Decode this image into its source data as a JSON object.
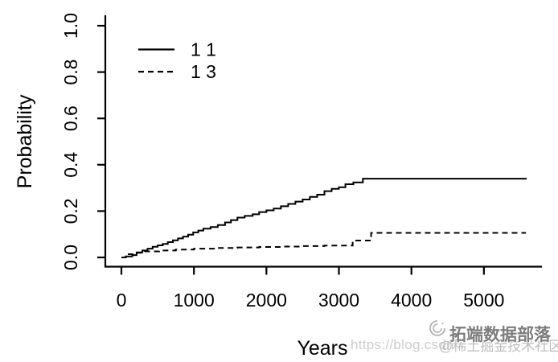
{
  "colors": {
    "line": "#000000",
    "background": "#ffffff",
    "url_watermark": "#cccccc",
    "juejin_watermark": "#bcbcbc",
    "tecdat_watermark": "#7d7d7d"
  },
  "watermarks": {
    "url": "https://blog.csdn",
    "juejin": "@稀土掘金技术社区",
    "tecdat": "拓端数据部落",
    "tecdat_logo_icon": "swirl-icon"
  },
  "chart_data": {
    "type": "line",
    "subtype": "step",
    "title": "",
    "xlabel": "Years",
    "ylabel": "Probability",
    "grid": false,
    "xlim": [
      -220,
      5790
    ],
    "ylim": [
      -0.04,
      1.04
    ],
    "x_ticks": [
      0,
      1000,
      2000,
      3000,
      4000,
      5000
    ],
    "y_ticks": [
      0.0,
      0.2,
      0.4,
      0.6,
      0.8,
      1.0
    ],
    "y_tick_labels": [
      "0.0",
      "0.2",
      "0.4",
      "0.6",
      "0.8",
      "1.0"
    ],
    "legend": {
      "position": "top-left",
      "box": false,
      "entries": [
        {
          "label": "1 1",
          "linestyle": "solid"
        },
        {
          "label": "1 3",
          "linestyle": "dashed"
        }
      ]
    },
    "series": [
      {
        "name": "1 1",
        "linestyle": "solid",
        "color": "#000000",
        "end_x": 5590,
        "step_points": [
          [
            0,
            0
          ],
          [
            60,
            0.004
          ],
          [
            150,
            0.01
          ],
          [
            210,
            0.022
          ],
          [
            290,
            0.03
          ],
          [
            360,
            0.038
          ],
          [
            430,
            0.046
          ],
          [
            500,
            0.052
          ],
          [
            570,
            0.058
          ],
          [
            640,
            0.066
          ],
          [
            710,
            0.074
          ],
          [
            780,
            0.082
          ],
          [
            850,
            0.09
          ],
          [
            920,
            0.098
          ],
          [
            990,
            0.108
          ],
          [
            1060,
            0.116
          ],
          [
            1130,
            0.124
          ],
          [
            1230,
            0.131
          ],
          [
            1330,
            0.14
          ],
          [
            1430,
            0.151
          ],
          [
            1510,
            0.161
          ],
          [
            1600,
            0.172
          ],
          [
            1700,
            0.179
          ],
          [
            1810,
            0.186
          ],
          [
            1900,
            0.196
          ],
          [
            2000,
            0.203
          ],
          [
            2100,
            0.211
          ],
          [
            2200,
            0.221
          ],
          [
            2300,
            0.231
          ],
          [
            2400,
            0.241
          ],
          [
            2500,
            0.25
          ],
          [
            2600,
            0.261
          ],
          [
            2700,
            0.271
          ],
          [
            2800,
            0.286
          ],
          [
            2900,
            0.296
          ],
          [
            3000,
            0.303
          ],
          [
            3090,
            0.316
          ],
          [
            3200,
            0.324
          ],
          [
            3330,
            0.34
          ]
        ]
      },
      {
        "name": "1 3",
        "linestyle": "dashed",
        "color": "#000000",
        "end_x": 5580,
        "step_points": [
          [
            0,
            0
          ],
          [
            60,
            0.014
          ],
          [
            160,
            0.02
          ],
          [
            320,
            0.026
          ],
          [
            520,
            0.03
          ],
          [
            750,
            0.034
          ],
          [
            1000,
            0.038
          ],
          [
            1300,
            0.041
          ],
          [
            1600,
            0.043
          ],
          [
            1900,
            0.045
          ],
          [
            2200,
            0.047
          ],
          [
            2500,
            0.049
          ],
          [
            2800,
            0.051
          ],
          [
            3190,
            0.073
          ],
          [
            3445,
            0.106
          ]
        ]
      }
    ]
  }
}
